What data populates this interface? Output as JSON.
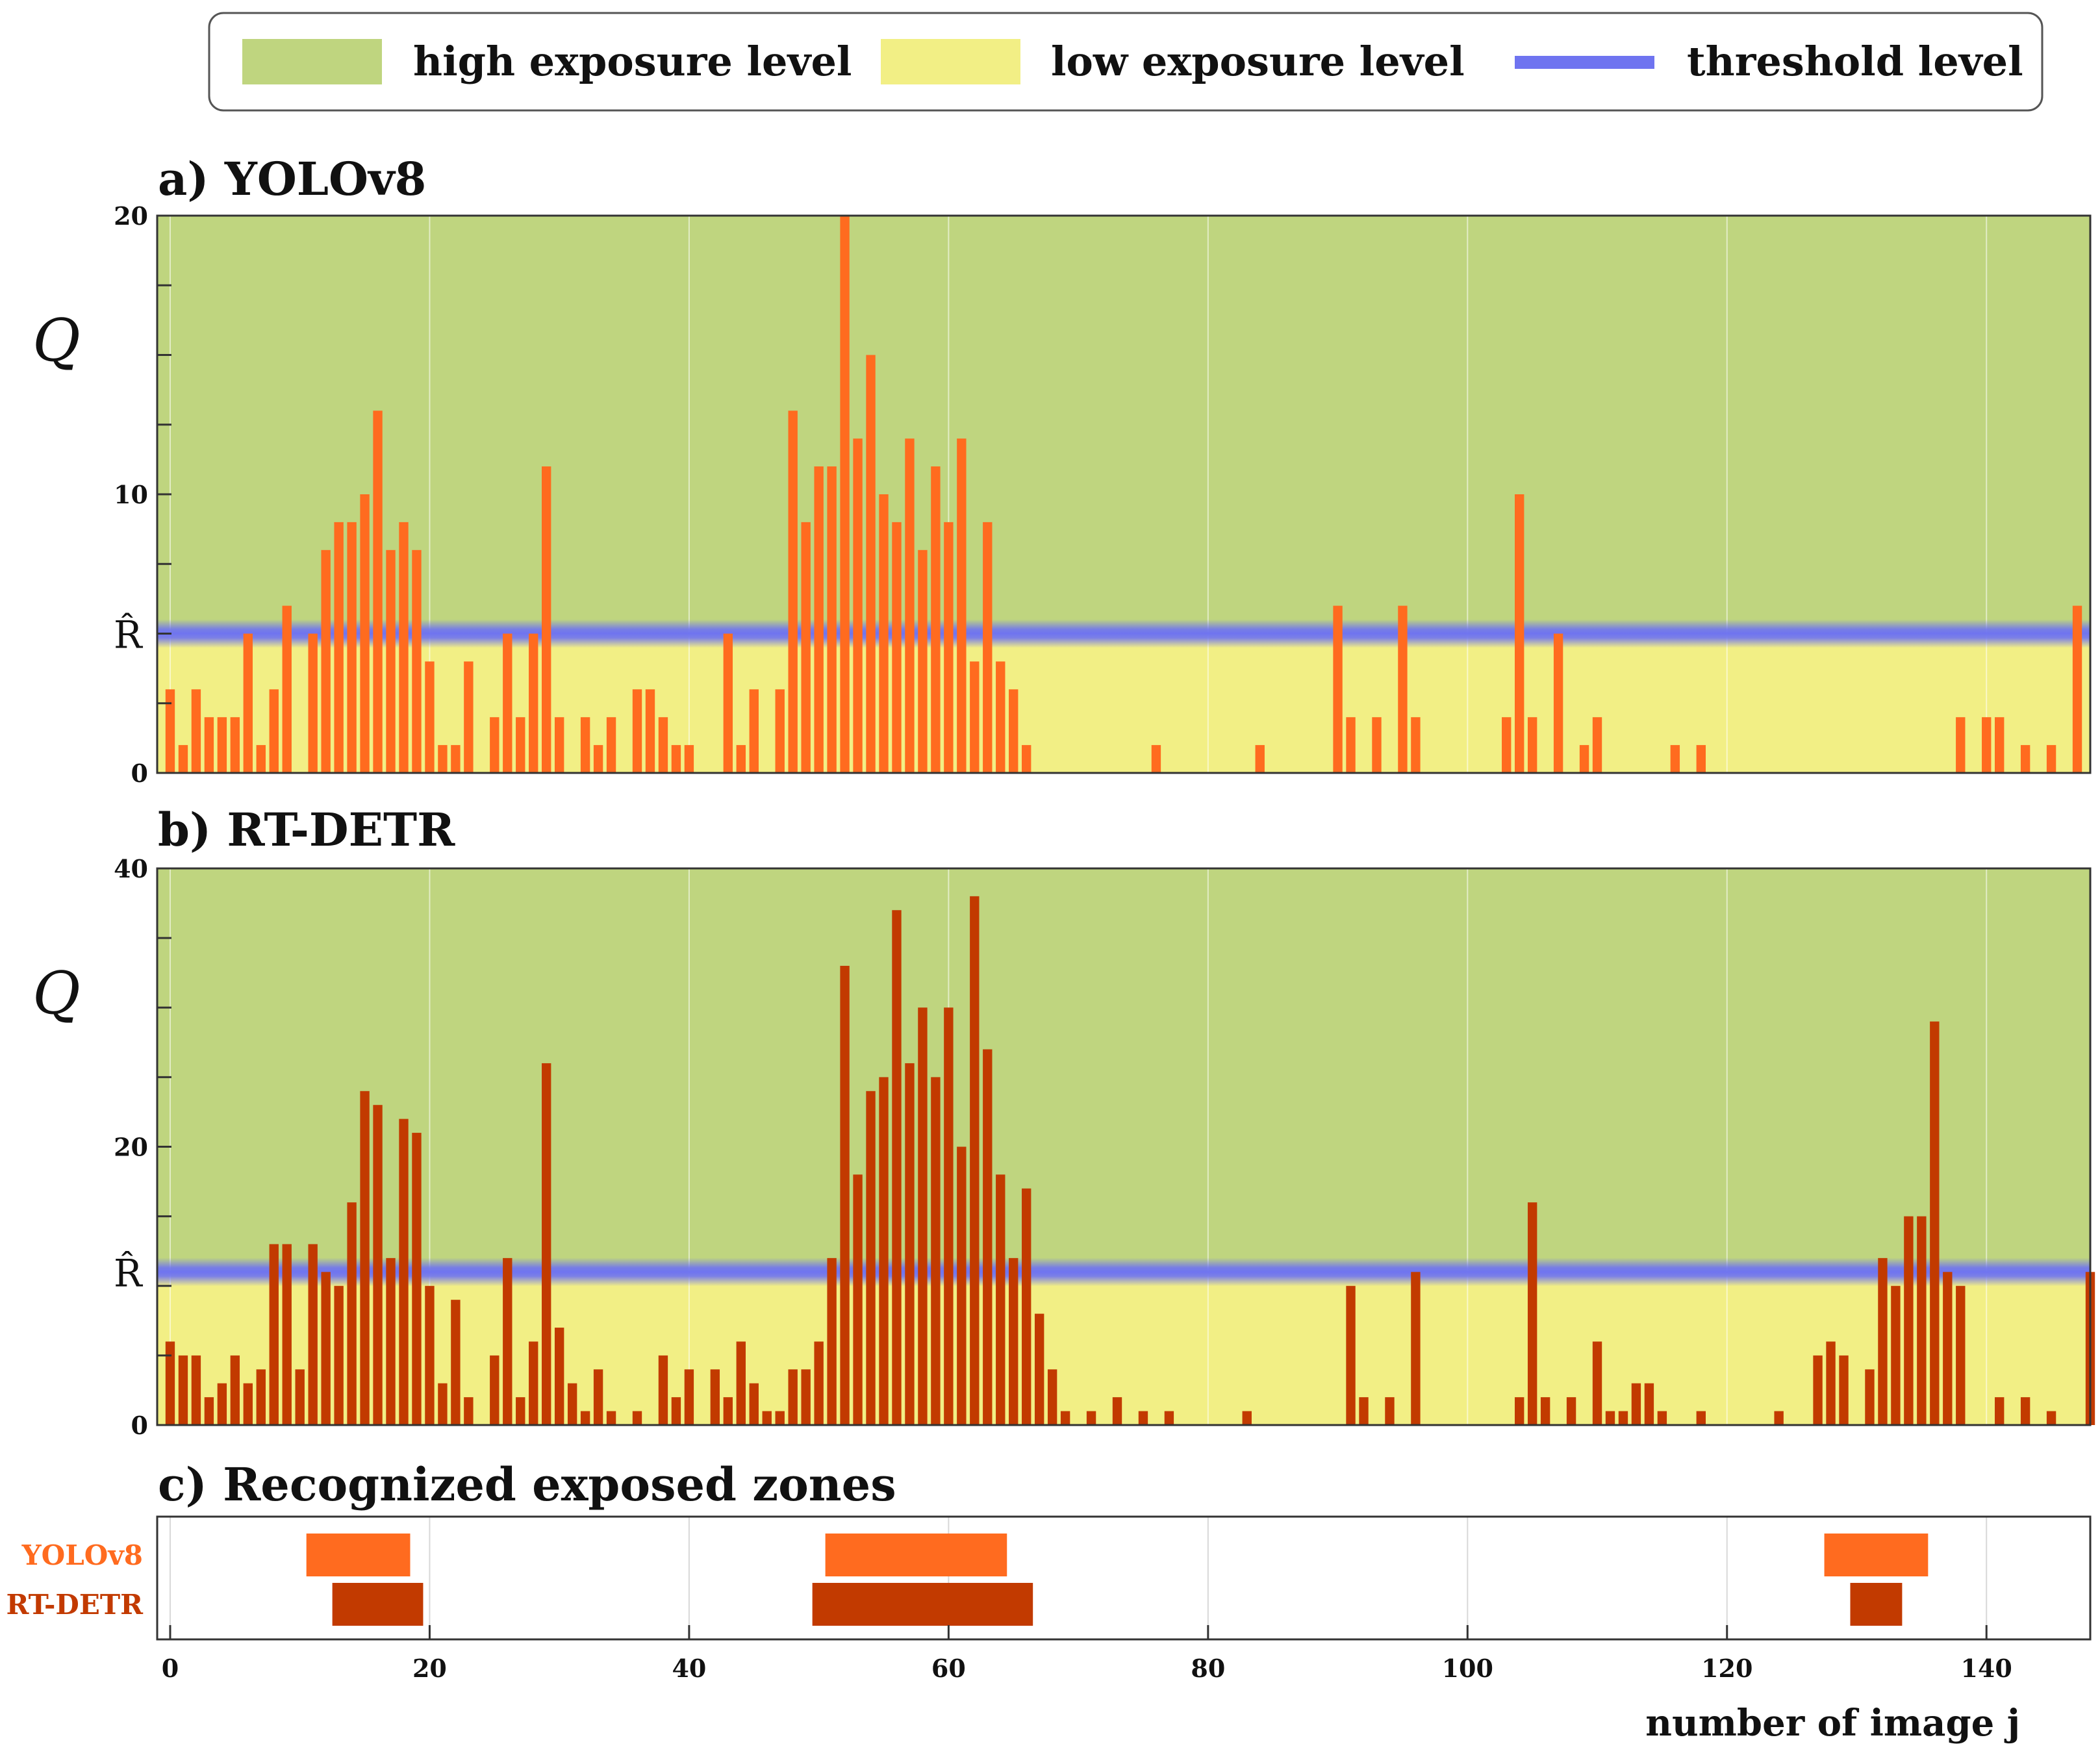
{
  "legend": {
    "high_label": "high exposure level",
    "low_label": "low exposure level",
    "threshold_label": "threshold level",
    "high_color": "#bfd57f",
    "low_color": "#f2ef85",
    "threshold_color": "#6f74f0"
  },
  "chart_data": [
    {
      "type": "bar",
      "panel": "a",
      "title": "a) YOLOv8",
      "ylabel": "Q",
      "threshold_label": "R̂",
      "threshold": 5,
      "ylim": [
        0,
        20
      ],
      "yticks": [
        0,
        10,
        20
      ],
      "xlim": [
        -1,
        148
      ],
      "bar_color": "#ff6b1f",
      "x_start": 0,
      "values": [
        3,
        1,
        3,
        2,
        2,
        2,
        5,
        1,
        3,
        6,
        0,
        5,
        8,
        9,
        9,
        10,
        13,
        8,
        9,
        8,
        4,
        1,
        1,
        4,
        0,
        2,
        5,
        2,
        5,
        11,
        2,
        0,
        2,
        1,
        2,
        0,
        3,
        3,
        2,
        1,
        1,
        0,
        0,
        5,
        1,
        3,
        0,
        3,
        13,
        9,
        11,
        11,
        20,
        12,
        15,
        10,
        9,
        12,
        8,
        11,
        9,
        12,
        4,
        9,
        4,
        3,
        1,
        0,
        0,
        0,
        0,
        0,
        0,
        0,
        0,
        0,
        1,
        0,
        0,
        0,
        0,
        0,
        0,
        0,
        1,
        0,
        0,
        0,
        0,
        0,
        6,
        2,
        0,
        2,
        0,
        6,
        2,
        0,
        0,
        0,
        0,
        0,
        0,
        2,
        10,
        2,
        0,
        5,
        0,
        1,
        2,
        0,
        0,
        0,
        0,
        0,
        1,
        0,
        1,
        0,
        0,
        0,
        0,
        0,
        0,
        0,
        0,
        0,
        0,
        0,
        0,
        0,
        0,
        0,
        0,
        0,
        0,
        0,
        2,
        0,
        2,
        2,
        0,
        1,
        0,
        1,
        0,
        6
      ]
    },
    {
      "type": "bar",
      "panel": "b",
      "title": "b) RT-DETR",
      "ylabel": "Q",
      "threshold_label": "R̂",
      "threshold": 11,
      "ylim": [
        0,
        40
      ],
      "yticks": [
        0,
        20,
        40
      ],
      "xlim": [
        -1,
        148
      ],
      "bar_color": "#c23a00",
      "x_start": 0,
      "values": [
        6,
        5,
        5,
        2,
        3,
        5,
        3,
        4,
        13,
        13,
        4,
        13,
        11,
        10,
        16,
        24,
        23,
        12,
        22,
        21,
        10,
        3,
        9,
        2,
        0,
        5,
        12,
        2,
        6,
        26,
        7,
        3,
        1,
        4,
        1,
        0,
        1,
        0,
        5,
        2,
        4,
        0,
        4,
        2,
        6,
        3,
        1,
        1,
        4,
        4,
        6,
        12,
        33,
        18,
        24,
        25,
        37,
        26,
        30,
        25,
        30,
        20,
        38,
        27,
        18,
        12,
        17,
        8,
        4,
        1,
        0,
        1,
        0,
        2,
        0,
        1,
        0,
        1,
        0,
        0,
        0,
        0,
        0,
        1,
        0,
        0,
        0,
        0,
        0,
        0,
        0,
        10,
        2,
        0,
        2,
        0,
        11,
        0,
        0,
        0,
        0,
        0,
        0,
        0,
        2,
        16,
        2,
        0,
        2,
        0,
        6,
        1,
        1,
        3,
        3,
        1,
        0,
        0,
        1,
        0,
        0,
        0,
        0,
        0,
        1,
        0,
        0,
        5,
        6,
        5,
        0,
        4,
        12,
        10,
        15,
        15,
        29,
        11,
        10,
        0,
        0,
        2,
        0,
        2,
        0,
        1,
        0,
        0,
        11
      ]
    },
    {
      "type": "range",
      "panel": "c",
      "title": "c) Recognized exposed zones",
      "xlabel": "number of image j",
      "xlim": [
        -1,
        148
      ],
      "xticks": [
        0,
        20,
        40,
        60,
        80,
        100,
        120,
        140
      ],
      "series": [
        {
          "name": "YOLOv8",
          "color": "#ff6b1f",
          "ranges": [
            [
              10.5,
              18.5
            ],
            [
              50.5,
              64.5
            ],
            [
              127.5,
              135.5
            ]
          ]
        },
        {
          "name": "RT-DETR",
          "color": "#c23a00",
          "ranges": [
            [
              12.5,
              19.5
            ],
            [
              49.5,
              66.5
            ],
            [
              129.5,
              133.5
            ]
          ]
        }
      ]
    }
  ]
}
